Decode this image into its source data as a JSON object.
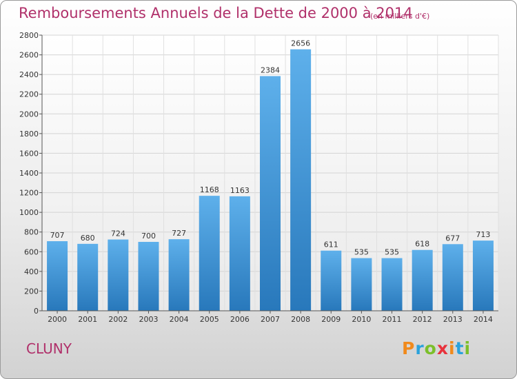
{
  "header": {
    "title": "Remboursements Annuels de la Dette de 2000 à 2014",
    "subtitle": "(en milliers d'€)"
  },
  "footer": {
    "city": "CLUNY",
    "logo_text": "Proxiti"
  },
  "colors": {
    "title": "#b0306a",
    "bar_top": "#5eb0eb",
    "bar_bottom": "#2878bb",
    "logo": [
      "#f08a1c",
      "#2aa2dc",
      "#7bbf2a",
      "#e8323c",
      "#f08a1c",
      "#2aa2dc",
      "#7bbf2a"
    ]
  },
  "chart_data": {
    "type": "bar",
    "title": "Remboursements Annuels de la Dette de 2000 à 2014",
    "subtitle": "(en milliers d'€)",
    "categories": [
      "2000",
      "2001",
      "2002",
      "2003",
      "2004",
      "2005",
      "2006",
      "2007",
      "2008",
      "2009",
      "2010",
      "2011",
      "2012",
      "2013",
      "2014"
    ],
    "values": [
      707,
      680,
      724,
      700,
      727,
      1168,
      1163,
      2384,
      2656,
      611,
      535,
      535,
      618,
      677,
      713
    ],
    "ylim": [
      0,
      2800
    ],
    "yticks": [
      0,
      200,
      400,
      600,
      800,
      1000,
      1200,
      1400,
      1600,
      1800,
      2000,
      2200,
      2400,
      2600,
      2800
    ],
    "grid": true,
    "xlabel": "",
    "ylabel": ""
  }
}
